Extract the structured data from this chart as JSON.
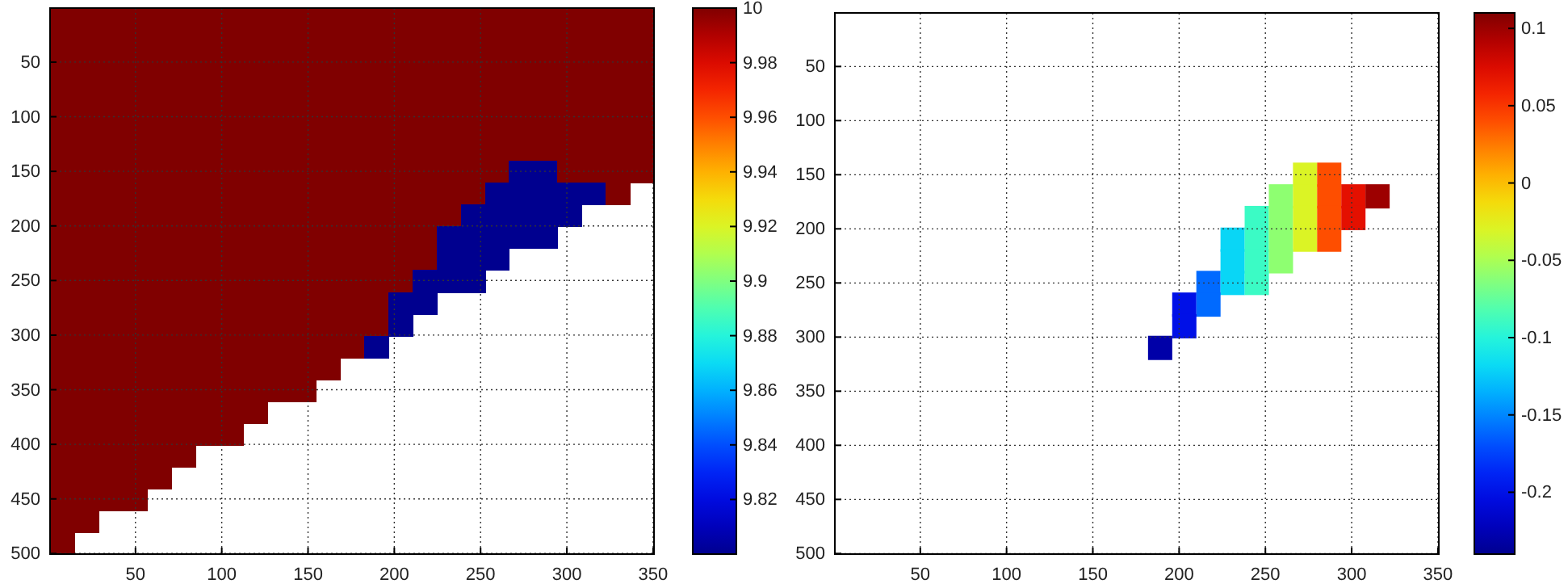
{
  "chart_data": [
    {
      "type": "heatmap",
      "xlim": [
        0.5,
        350.5
      ],
      "ylim": [
        500.5,
        0.5
      ],
      "xticks": [
        50,
        100,
        150,
        200,
        250,
        300,
        350
      ],
      "yticks": [
        50,
        100,
        150,
        200,
        250,
        300,
        350,
        400,
        450,
        500
      ],
      "grid": true,
      "clim": [
        9.8,
        10
      ],
      "cticks": [
        9.82,
        9.84,
        9.86,
        9.88,
        9.9,
        9.92,
        9.94,
        9.96,
        9.98,
        10
      ],
      "cells": [
        [
          10,
          10,
          10,
          10,
          10,
          10,
          10,
          10,
          10,
          10,
          10,
          10,
          10,
          10,
          10,
          10,
          10,
          10,
          10,
          10,
          10,
          10,
          10,
          10,
          10
        ],
        [
          10,
          10,
          10,
          10,
          10,
          10,
          10,
          10,
          10,
          10,
          10,
          10,
          10,
          10,
          10,
          10,
          10,
          10,
          10,
          10,
          10,
          10,
          10,
          10,
          10
        ],
        [
          10,
          10,
          10,
          10,
          10,
          10,
          10,
          10,
          10,
          10,
          10,
          10,
          10,
          10,
          10,
          10,
          10,
          10,
          10,
          10,
          10,
          10,
          10,
          10,
          10
        ],
        [
          10,
          10,
          10,
          10,
          10,
          10,
          10,
          10,
          10,
          10,
          10,
          10,
          10,
          10,
          10,
          10,
          10,
          10,
          10,
          10,
          10,
          10,
          10,
          10,
          10
        ],
        [
          10,
          10,
          10,
          10,
          10,
          10,
          10,
          10,
          10,
          10,
          10,
          10,
          10,
          10,
          10,
          10,
          10,
          10,
          10,
          10,
          10,
          10,
          10,
          10,
          10
        ],
        [
          10,
          10,
          10,
          10,
          10,
          10,
          10,
          10,
          10,
          10,
          10,
          10,
          10,
          10,
          10,
          10,
          10,
          10,
          10,
          10,
          10,
          10,
          10,
          10,
          10
        ],
        [
          10,
          10,
          10,
          10,
          10,
          10,
          10,
          10,
          10,
          10,
          10,
          10,
          10,
          10,
          10,
          10,
          10,
          10,
          10,
          10,
          10,
          10,
          10,
          10,
          10
        ],
        [
          10,
          10,
          10,
          10,
          10,
          10,
          10,
          10,
          10,
          10,
          10,
          10,
          10,
          10,
          10,
          10,
          10,
          10,
          10,
          9.8,
          9.8,
          10,
          10,
          10,
          10
        ],
        [
          10,
          10,
          10,
          10,
          10,
          10,
          10,
          10,
          10,
          10,
          10,
          10,
          10,
          10,
          10,
          10,
          10,
          10,
          9.8,
          9.8,
          9.8,
          9.8,
          9.8,
          10,
          null
        ],
        [
          10,
          10,
          10,
          10,
          10,
          10,
          10,
          10,
          10,
          10,
          10,
          10,
          10,
          10,
          10,
          10,
          10,
          9.8,
          9.8,
          9.8,
          9.8,
          9.8,
          null,
          null,
          null
        ],
        [
          10,
          10,
          10,
          10,
          10,
          10,
          10,
          10,
          10,
          10,
          10,
          10,
          10,
          10,
          10,
          10,
          9.8,
          9.8,
          9.8,
          9.8,
          9.8,
          null,
          null,
          null,
          null
        ],
        [
          10,
          10,
          10,
          10,
          10,
          10,
          10,
          10,
          10,
          10,
          10,
          10,
          10,
          10,
          10,
          10,
          9.8,
          9.8,
          9.8,
          null,
          null,
          null,
          null,
          null,
          null
        ],
        [
          10,
          10,
          10,
          10,
          10,
          10,
          10,
          10,
          10,
          10,
          10,
          10,
          10,
          10,
          10,
          9.8,
          9.8,
          9.8,
          null,
          null,
          null,
          null,
          null,
          null,
          null
        ],
        [
          10,
          10,
          10,
          10,
          10,
          10,
          10,
          10,
          10,
          10,
          10,
          10,
          10,
          10,
          9.8,
          9.8,
          null,
          null,
          null,
          null,
          null,
          null,
          null,
          null,
          null
        ],
        [
          10,
          10,
          10,
          10,
          10,
          10,
          10,
          10,
          10,
          10,
          10,
          10,
          10,
          10,
          9.8,
          null,
          null,
          null,
          null,
          null,
          null,
          null,
          null,
          null,
          null
        ],
        [
          10,
          10,
          10,
          10,
          10,
          10,
          10,
          10,
          10,
          10,
          10,
          10,
          10,
          9.8,
          null,
          null,
          null,
          null,
          null,
          null,
          null,
          null,
          null,
          null,
          null
        ],
        [
          10,
          10,
          10,
          10,
          10,
          10,
          10,
          10,
          10,
          10,
          10,
          10,
          null,
          null,
          null,
          null,
          null,
          null,
          null,
          null,
          null,
          null,
          null,
          null,
          null
        ],
        [
          10,
          10,
          10,
          10,
          10,
          10,
          10,
          10,
          10,
          10,
          10,
          null,
          null,
          null,
          null,
          null,
          null,
          null,
          null,
          null,
          null,
          null,
          null,
          null,
          null
        ],
        [
          10,
          10,
          10,
          10,
          10,
          10,
          10,
          10,
          10,
          null,
          null,
          null,
          null,
          null,
          null,
          null,
          null,
          null,
          null,
          null,
          null,
          null,
          null,
          null,
          null
        ],
        [
          10,
          10,
          10,
          10,
          10,
          10,
          10,
          10,
          null,
          null,
          null,
          null,
          null,
          null,
          null,
          null,
          null,
          null,
          null,
          null,
          null,
          null,
          null,
          null,
          null
        ],
        [
          10,
          10,
          10,
          10,
          10,
          10,
          null,
          null,
          null,
          null,
          null,
          null,
          null,
          null,
          null,
          null,
          null,
          null,
          null,
          null,
          null,
          null,
          null,
          null,
          null
        ],
        [
          10,
          10,
          10,
          10,
          10,
          null,
          null,
          null,
          null,
          null,
          null,
          null,
          null,
          null,
          null,
          null,
          null,
          null,
          null,
          null,
          null,
          null,
          null,
          null,
          null
        ],
        [
          10,
          10,
          10,
          10,
          null,
          null,
          null,
          null,
          null,
          null,
          null,
          null,
          null,
          null,
          null,
          null,
          null,
          null,
          null,
          null,
          null,
          null,
          null,
          null,
          null
        ],
        [
          10,
          10,
          null,
          null,
          null,
          null,
          null,
          null,
          null,
          null,
          null,
          null,
          null,
          null,
          null,
          null,
          null,
          null,
          null,
          null,
          null,
          null,
          null,
          null,
          null
        ],
        [
          10,
          null,
          null,
          null,
          null,
          null,
          null,
          null,
          null,
          null,
          null,
          null,
          null,
          null,
          null,
          null,
          null,
          null,
          null,
          null,
          null,
          null,
          null,
          null,
          null
        ]
      ]
    },
    {
      "type": "scatter",
      "marker": "square",
      "xlim": [
        0.5,
        350.5
      ],
      "ylim": [
        500.5,
        0.5
      ],
      "xticks": [
        50,
        100,
        150,
        200,
        250,
        300,
        350
      ],
      "yticks": [
        50,
        100,
        150,
        200,
        250,
        300,
        350,
        400,
        450,
        500
      ],
      "grid": true,
      "clim": [
        -0.24,
        0.11
      ],
      "cticks": [
        -0.2,
        -0.15,
        -0.1,
        -0.05,
        0,
        0.05,
        0.1
      ],
      "x": [
        273,
        287,
        259,
        273,
        287,
        301,
        315,
        245,
        259,
        273,
        287,
        301,
        231,
        245,
        259,
        273,
        287,
        231,
        245,
        259,
        217,
        231,
        245,
        203,
        217,
        203,
        189
      ],
      "values": [
        150,
        150,
        170,
        170,
        170,
        170,
        170,
        190,
        190,
        190,
        190,
        190,
        210,
        210,
        210,
        210,
        210,
        230,
        230,
        230,
        250,
        250,
        250,
        270,
        270,
        290,
        310
      ],
      "cvalues": [
        -0.03,
        0.04,
        -0.06,
        -0.03,
        0.04,
        0.07,
        0.1,
        -0.09,
        -0.06,
        -0.03,
        0.04,
        0.07,
        -0.12,
        -0.09,
        -0.06,
        -0.03,
        0.04,
        -0.12,
        -0.09,
        -0.06,
        -0.16,
        -0.12,
        -0.09,
        -0.2,
        -0.16,
        -0.2,
        -0.23
      ]
    }
  ]
}
